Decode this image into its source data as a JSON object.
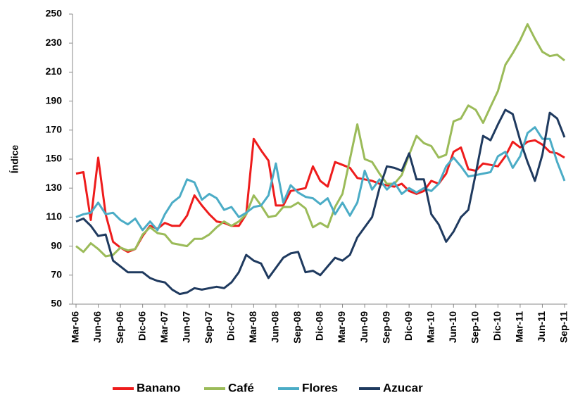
{
  "chart_data": {
    "type": "line",
    "y_label": "Índice",
    "categories": [
      "Mar-06",
      null,
      null,
      "Jun-06",
      null,
      null,
      "Sep-06",
      null,
      null,
      "Dic-06",
      null,
      null,
      "Mar-07",
      null,
      null,
      "Jun-07",
      null,
      null,
      "Sep-07",
      null,
      null,
      "Dic-07",
      null,
      null,
      "Mar-08",
      null,
      null,
      "Jun-08",
      null,
      null,
      "Sep-08",
      null,
      null,
      "Dic-08",
      null,
      null,
      "Mar-09",
      null,
      null,
      "Jun-09",
      null,
      null,
      "Sep-09",
      null,
      null,
      "Dic-09",
      null,
      null,
      "Mar-10",
      null,
      null,
      "Jun-10",
      null,
      null,
      "Sep-10",
      null,
      null,
      "Dic-10",
      null,
      null,
      "Mar-11",
      null,
      null,
      "Jun-11",
      null,
      null,
      "Sep-11"
    ],
    "series": [
      {
        "name": "Banano",
        "color": "#ee1c1c",
        "values": [
          140,
          141,
          108,
          151,
          112,
          93,
          89,
          86,
          88,
          97,
          104,
          102,
          106,
          104,
          104,
          111,
          125,
          118,
          112,
          107,
          106,
          104,
          104,
          112,
          164,
          156,
          149,
          118,
          118,
          128,
          129,
          130,
          145,
          135,
          131,
          148,
          146,
          144,
          137,
          136,
          135,
          133,
          132,
          131,
          133,
          128,
          126,
          128,
          135,
          133,
          140,
          155,
          158,
          143,
          142,
          147,
          146,
          145,
          152,
          162,
          158,
          162,
          163,
          160,
          155,
          154,
          151
        ]
      },
      {
        "name": "Café",
        "color": "#9bbb59",
        "values": [
          90,
          86,
          92,
          88,
          83,
          84,
          89,
          87,
          88,
          98,
          103,
          99,
          98,
          92,
          91,
          90,
          95,
          95,
          98,
          103,
          107,
          104,
          107,
          112,
          125,
          118,
          110,
          111,
          117,
          117,
          120,
          116,
          103,
          106,
          103,
          117,
          126,
          150,
          174,
          150,
          148,
          140,
          133,
          133,
          139,
          153,
          166,
          161,
          159,
          151,
          153,
          176,
          178,
          187,
          184,
          175,
          186,
          197,
          215,
          223,
          232,
          243,
          233,
          224,
          221,
          222,
          218
        ]
      },
      {
        "name": "Flores",
        "color": "#4bacc6",
        "values": [
          110,
          112,
          113,
          120,
          112,
          113,
          108,
          105,
          109,
          101,
          107,
          101,
          112,
          120,
          124,
          136,
          134,
          122,
          126,
          123,
          115,
          117,
          110,
          113,
          117,
          118,
          125,
          147,
          120,
          132,
          127,
          124,
          123,
          119,
          123,
          112,
          120,
          111,
          120,
          142,
          129,
          136,
          129,
          134,
          126,
          130,
          127,
          130,
          128,
          133,
          145,
          151,
          145,
          138,
          139,
          140,
          141,
          152,
          155,
          144,
          152,
          168,
          172,
          164,
          164,
          148,
          135
        ]
      },
      {
        "name": "Azucar",
        "color": "#1f3a5f",
        "values": [
          107,
          109,
          104,
          97,
          98,
          80,
          76,
          72,
          72,
          72,
          68,
          66,
          65,
          60,
          57,
          58,
          61,
          60,
          61,
          62,
          61,
          65,
          72,
          84,
          80,
          78,
          68,
          75,
          82,
          85,
          86,
          72,
          73,
          70,
          76,
          82,
          80,
          84,
          96,
          103,
          110,
          130,
          145,
          144,
          142,
          154,
          136,
          136,
          112,
          105,
          93,
          100,
          110,
          115,
          140,
          166,
          163,
          174,
          184,
          181,
          163,
          148,
          135,
          153,
          182,
          178,
          165
        ]
      }
    ],
    "ylim": [
      50,
      250
    ],
    "yticks": [
      50,
      70,
      90,
      110,
      130,
      150,
      170,
      190,
      210,
      230,
      250
    ],
    "grid": false,
    "legend": "bottom"
  }
}
